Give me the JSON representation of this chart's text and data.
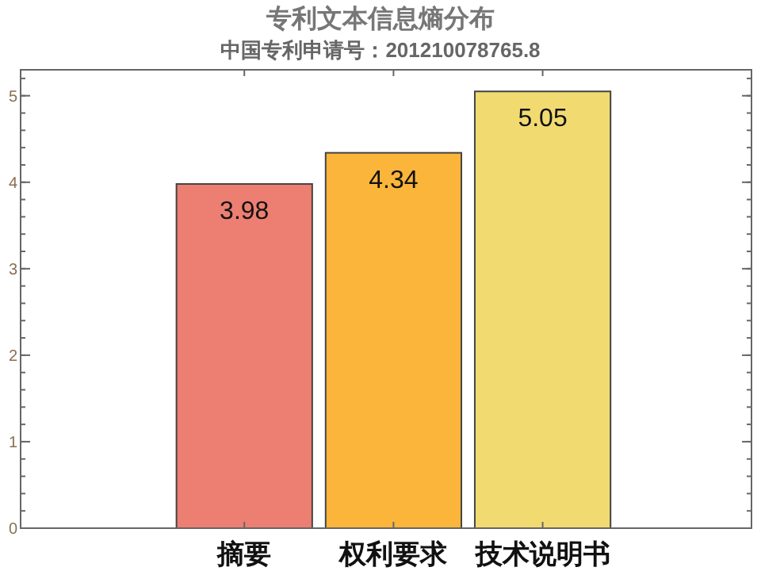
{
  "chart_data": {
    "type": "bar",
    "title": "专利文本信息熵分布",
    "subtitle": "中国专利申请号：201210078765.8",
    "categories": [
      "摘要",
      "权利要求",
      "技术说明书"
    ],
    "values": [
      3.98,
      4.34,
      5.05
    ],
    "colors": [
      "#ec7f71",
      "#fbb53a",
      "#f1db71"
    ],
    "ylim": [
      0,
      5.3
    ],
    "yticks": [
      0,
      1,
      2,
      3,
      4,
      5
    ],
    "data_labels": true
  }
}
